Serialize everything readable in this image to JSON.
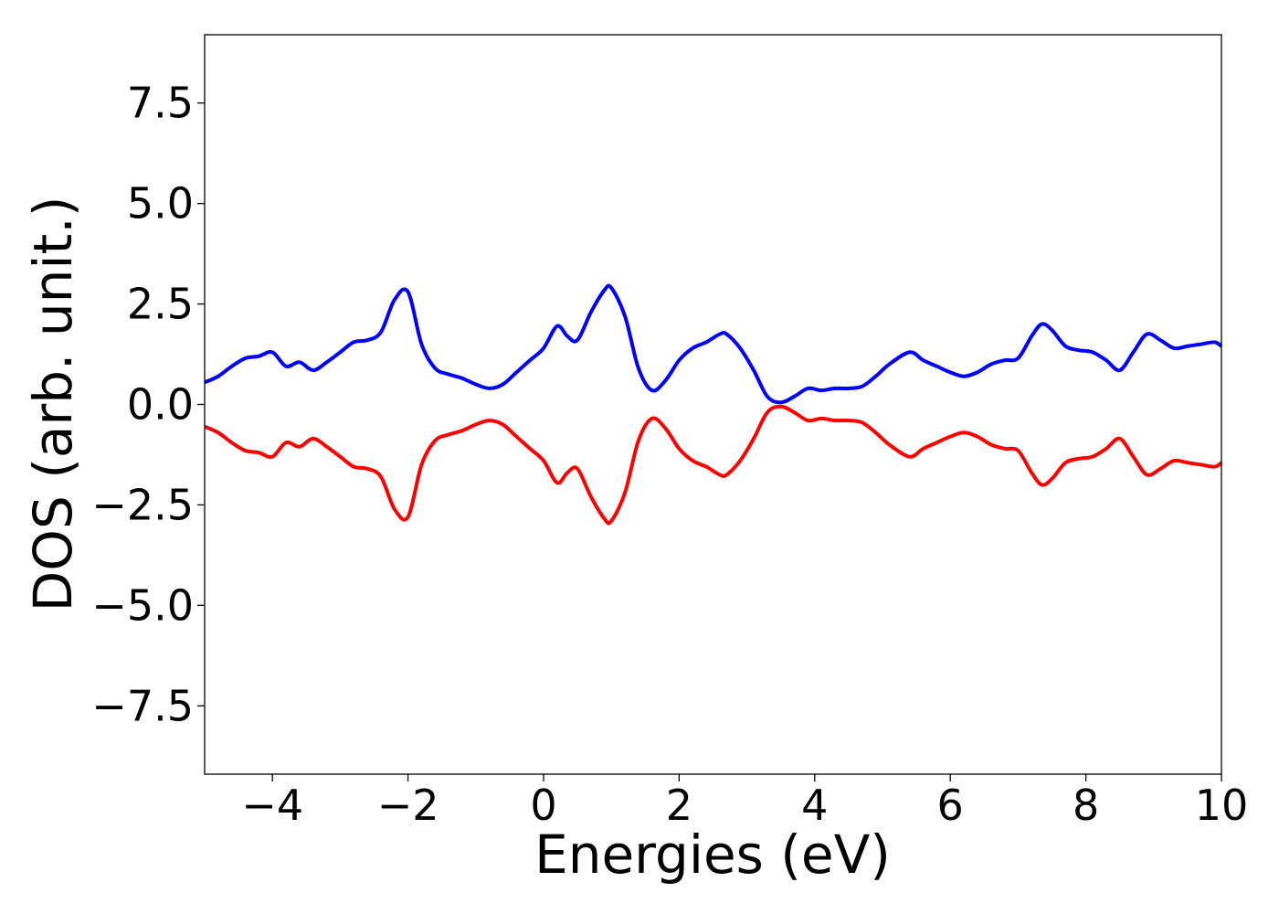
{
  "chart_data": {
    "type": "line",
    "title": "",
    "xlabel": "Energies (eV)",
    "ylabel": "DOS (arb. unit.)",
    "xlim": [
      -5,
      10
    ],
    "ylim": [
      -9.2,
      9.2
    ],
    "grid": false,
    "legend": "none",
    "x_ticks": [
      -4,
      -2,
      0,
      2,
      4,
      6,
      8,
      10
    ],
    "x_tick_labels": [
      "−4",
      "−2",
      "0",
      "2",
      "4",
      "6",
      "8",
      "10"
    ],
    "y_ticks": [
      7.5,
      5.0,
      2.5,
      0.0,
      -2.5,
      -5.0,
      -7.5
    ],
    "y_tick_labels": [
      "7.5",
      "5.0",
      "2.5",
      "0.0",
      "−2.5",
      "−5.0",
      "−7.5"
    ],
    "series": [
      {
        "color": "#0000ff",
        "x": [
          -5.0,
          -4.8,
          -4.6,
          -4.4,
          -4.2,
          -4.0,
          -3.8,
          -3.6,
          -3.4,
          -3.2,
          -3.0,
          -2.8,
          -2.6,
          -2.4,
          -2.2,
          -2.0,
          -1.8,
          -1.6,
          -1.4,
          -1.2,
          -1.0,
          -0.8,
          -0.6,
          -0.4,
          -0.2,
          0.0,
          0.2,
          0.35,
          0.5,
          0.7,
          0.9,
          1.0,
          1.2,
          1.4,
          1.6,
          1.8,
          2.0,
          2.2,
          2.4,
          2.6,
          2.7,
          2.9,
          3.1,
          3.3,
          3.5,
          3.7,
          3.9,
          4.1,
          4.3,
          4.5,
          4.7,
          4.9,
          5.1,
          5.4,
          5.6,
          5.8,
          6.0,
          6.2,
          6.4,
          6.6,
          6.8,
          7.0,
          7.2,
          7.35,
          7.5,
          7.7,
          7.9,
          8.1,
          8.3,
          8.5,
          8.7,
          8.9,
          9.1,
          9.3,
          9.5,
          9.7,
          9.9,
          10.0
        ],
        "y": [
          0.55,
          0.7,
          0.95,
          1.15,
          1.2,
          1.3,
          0.95,
          1.05,
          0.85,
          1.05,
          1.3,
          1.55,
          1.6,
          1.8,
          2.6,
          2.8,
          1.5,
          0.9,
          0.75,
          0.65,
          0.5,
          0.4,
          0.5,
          0.8,
          1.1,
          1.4,
          1.95,
          1.7,
          1.6,
          2.3,
          2.85,
          2.9,
          2.2,
          0.9,
          0.35,
          0.6,
          1.1,
          1.4,
          1.55,
          1.75,
          1.75,
          1.4,
          0.85,
          0.2,
          0.05,
          0.2,
          0.4,
          0.35,
          0.4,
          0.4,
          0.45,
          0.7,
          1.0,
          1.3,
          1.1,
          0.95,
          0.8,
          0.7,
          0.8,
          1.0,
          1.1,
          1.15,
          1.7,
          2.0,
          1.85,
          1.45,
          1.35,
          1.3,
          1.1,
          0.85,
          1.3,
          1.75,
          1.6,
          1.4,
          1.45,
          1.5,
          1.55,
          1.45
        ]
      },
      {
        "color": "#ff0000",
        "x": [
          -5.0,
          -4.8,
          -4.6,
          -4.4,
          -4.2,
          -4.0,
          -3.8,
          -3.6,
          -3.4,
          -3.2,
          -3.0,
          -2.8,
          -2.6,
          -2.4,
          -2.2,
          -2.0,
          -1.8,
          -1.6,
          -1.4,
          -1.2,
          -1.0,
          -0.8,
          -0.6,
          -0.4,
          -0.2,
          0.0,
          0.2,
          0.35,
          0.5,
          0.7,
          0.9,
          1.0,
          1.2,
          1.4,
          1.6,
          1.8,
          2.0,
          2.2,
          2.4,
          2.6,
          2.7,
          2.9,
          3.1,
          3.3,
          3.5,
          3.7,
          3.9,
          4.1,
          4.3,
          4.5,
          4.7,
          4.9,
          5.1,
          5.4,
          5.6,
          5.8,
          6.0,
          6.2,
          6.4,
          6.6,
          6.8,
          7.0,
          7.2,
          7.35,
          7.5,
          7.7,
          7.9,
          8.1,
          8.3,
          8.5,
          8.7,
          8.9,
          9.1,
          9.3,
          9.5,
          9.7,
          9.9,
          10.0
        ],
        "y": [
          -0.55,
          -0.7,
          -0.95,
          -1.15,
          -1.2,
          -1.3,
          -0.95,
          -1.05,
          -0.85,
          -1.05,
          -1.3,
          -1.55,
          -1.6,
          -1.8,
          -2.6,
          -2.8,
          -1.5,
          -0.9,
          -0.75,
          -0.65,
          -0.5,
          -0.4,
          -0.5,
          -0.8,
          -1.1,
          -1.4,
          -1.95,
          -1.7,
          -1.6,
          -2.3,
          -2.85,
          -2.9,
          -2.2,
          -0.9,
          -0.35,
          -0.6,
          -1.1,
          -1.4,
          -1.55,
          -1.75,
          -1.75,
          -1.4,
          -0.85,
          -0.2,
          -0.05,
          -0.2,
          -0.4,
          -0.35,
          -0.4,
          -0.4,
          -0.45,
          -0.7,
          -1.0,
          -1.3,
          -1.1,
          -0.95,
          -0.8,
          -0.7,
          -0.8,
          -1.0,
          -1.1,
          -1.15,
          -1.7,
          -2.0,
          -1.85,
          -1.45,
          -1.35,
          -1.3,
          -1.1,
          -0.85,
          -1.3,
          -1.75,
          -1.6,
          -1.4,
          -1.45,
          -1.5,
          -1.55,
          -1.45
        ]
      }
    ]
  }
}
